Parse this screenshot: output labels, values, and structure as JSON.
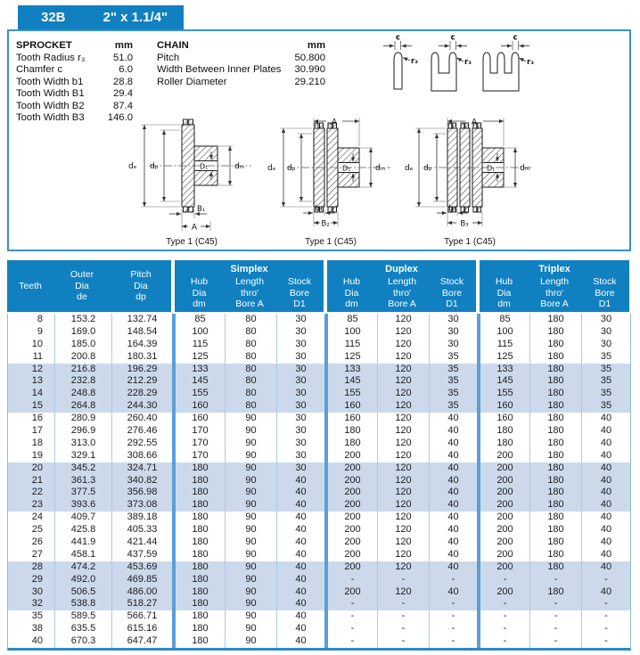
{
  "tab": {
    "model": "32B",
    "size": "2\" x 1.1/4\""
  },
  "sprocket": {
    "title": "SPROCKET",
    "unit": "mm",
    "rows": [
      {
        "label": "Tooth Radius r₃",
        "value": "51.0"
      },
      {
        "label": "Chamfer c",
        "value": "6.0"
      },
      {
        "label": "Tooth Width b1",
        "value": "28.8"
      },
      {
        "label": "Tooth Width B1",
        "value": "29.4"
      },
      {
        "label": "Tooth Width B2",
        "value": "87.4"
      },
      {
        "label": "Tooth Width B3",
        "value": "146.0"
      }
    ]
  },
  "chain": {
    "title": "CHAIN",
    "unit": "mm",
    "rows": [
      {
        "label": "Pitch",
        "value": "50.800"
      },
      {
        "label": "Width Between Inner Plates",
        "value": "30.990"
      },
      {
        "label": "Roller Diameter",
        "value": "29.210"
      }
    ]
  },
  "diagrams": {
    "profiles": [
      {
        "c": "c",
        "r3": "r₃"
      },
      {
        "c": "c",
        "r3": "r₃"
      },
      {
        "c": "c",
        "r3": "r₃"
      }
    ],
    "sections": [
      {
        "caption": "Type 1 (C45)",
        "de": "dₑ",
        "dp": "dₚ",
        "d1": "D₁",
        "dm": "dₘ",
        "bottom1": "B₁",
        "bottom2": "A"
      },
      {
        "caption": "Type 1 (C45)",
        "top": "A",
        "de": "dₑ",
        "dp": "dₚ",
        "d1": "D₁",
        "dm": "dₘ",
        "bottom1": "b₁",
        "bottom2": "B₂"
      },
      {
        "caption": "Type 1 (C45)",
        "top": "A",
        "de": "dₑ",
        "dp": "dₚ",
        "d1": "D₁",
        "dm": "dₘ",
        "bottom1": "b₁",
        "bottom2": "B₃"
      }
    ]
  },
  "table": {
    "header": {
      "teeth": "Teeth",
      "outer": [
        "Outer",
        "Dia",
        "de"
      ],
      "pitch": [
        "Pitch",
        "Dia",
        "dp"
      ],
      "groups": [
        {
          "title": "Simplex",
          "hub": [
            "Hub",
            "Dia",
            "dm"
          ],
          "length": [
            "Length",
            "thro'",
            "Bore A"
          ],
          "stock": [
            "Stock",
            "Bore",
            "D1"
          ]
        },
        {
          "title": "Duplex",
          "hub": [
            "Hub",
            "Dia",
            "dm"
          ],
          "length": [
            "Length",
            "thro'",
            "Bore A"
          ],
          "stock": [
            "Stock",
            "Bore",
            "D1"
          ]
        },
        {
          "title": "Triplex",
          "hub": [
            "Hub",
            "Dia",
            "dm"
          ],
          "length": [
            "Length",
            "thro'",
            "Bore A"
          ],
          "stock": [
            "Stock",
            "Bore",
            "D1"
          ]
        }
      ]
    },
    "rows": [
      [
        "8",
        "153.2",
        "132.74",
        "85",
        "80",
        "30",
        "85",
        "120",
        "30",
        "85",
        "180",
        "30"
      ],
      [
        "9",
        "169.0",
        "148.54",
        "100",
        "80",
        "30",
        "100",
        "120",
        "30",
        "100",
        "180",
        "30"
      ],
      [
        "10",
        "185.0",
        "164.39",
        "115",
        "80",
        "30",
        "115",
        "120",
        "30",
        "115",
        "180",
        "30"
      ],
      [
        "11",
        "200.8",
        "180.31",
        "125",
        "80",
        "30",
        "125",
        "120",
        "35",
        "125",
        "180",
        "35"
      ],
      [
        "12",
        "216.8",
        "196.29",
        "133",
        "80",
        "30",
        "133",
        "120",
        "35",
        "133",
        "180",
        "35"
      ],
      [
        "13",
        "232.8",
        "212.29",
        "145",
        "80",
        "30",
        "145",
        "120",
        "35",
        "145",
        "180",
        "35"
      ],
      [
        "14",
        "248.8",
        "228.29",
        "155",
        "80",
        "30",
        "155",
        "120",
        "35",
        "155",
        "180",
        "35"
      ],
      [
        "15",
        "264.8",
        "244.30",
        "160",
        "80",
        "30",
        "160",
        "120",
        "35",
        "160",
        "180",
        "35"
      ],
      [
        "16",
        "280.9",
        "260.40",
        "160",
        "90",
        "30",
        "160",
        "120",
        "40",
        "160",
        "180",
        "40"
      ],
      [
        "17",
        "296.9",
        "276.46",
        "170",
        "90",
        "30",
        "180",
        "120",
        "40",
        "180",
        "180",
        "40"
      ],
      [
        "18",
        "313.0",
        "292.55",
        "170",
        "90",
        "30",
        "180",
        "120",
        "40",
        "180",
        "180",
        "40"
      ],
      [
        "19",
        "329.1",
        "308.66",
        "170",
        "90",
        "30",
        "200",
        "120",
        "40",
        "200",
        "180",
        "40"
      ],
      [
        "20",
        "345.2",
        "324.71",
        "180",
        "90",
        "30",
        "200",
        "120",
        "40",
        "200",
        "180",
        "40"
      ],
      [
        "21",
        "361.3",
        "340.82",
        "180",
        "90",
        "40",
        "200",
        "120",
        "40",
        "200",
        "180",
        "40"
      ],
      [
        "22",
        "377.5",
        "356.98",
        "180",
        "90",
        "40",
        "200",
        "120",
        "40",
        "200",
        "180",
        "40"
      ],
      [
        "23",
        "393.6",
        "373.08",
        "180",
        "90",
        "40",
        "200",
        "120",
        "40",
        "200",
        "180",
        "40"
      ],
      [
        "24",
        "409.7",
        "389.18",
        "180",
        "90",
        "40",
        "200",
        "120",
        "40",
        "200",
        "180",
        "40"
      ],
      [
        "25",
        "425.8",
        "405.33",
        "180",
        "90",
        "40",
        "200",
        "120",
        "40",
        "200",
        "180",
        "40"
      ],
      [
        "26",
        "441.9",
        "421.44",
        "180",
        "90",
        "40",
        "200",
        "120",
        "40",
        "200",
        "180",
        "40"
      ],
      [
        "27",
        "458.1",
        "437.59",
        "180",
        "90",
        "40",
        "200",
        "120",
        "40",
        "200",
        "180",
        "40"
      ],
      [
        "28",
        "474.2",
        "453.69",
        "180",
        "90",
        "40",
        "200",
        "120",
        "40",
        "200",
        "180",
        "40"
      ],
      [
        "29",
        "492.0",
        "469.85",
        "180",
        "90",
        "40",
        "-",
        "-",
        "-",
        "-",
        "-",
        "-"
      ],
      [
        "30",
        "506.5",
        "486.00",
        "180",
        "90",
        "40",
        "200",
        "120",
        "40",
        "200",
        "180",
        "40"
      ],
      [
        "32",
        "538.8",
        "518.27",
        "180",
        "90",
        "40",
        "-",
        "-",
        "-",
        "-",
        "-",
        "-"
      ],
      [
        "35",
        "589.5",
        "566.71",
        "180",
        "90",
        "40",
        "-",
        "-",
        "-",
        "-",
        "-",
        "-"
      ],
      [
        "38",
        "635.5",
        "615.16",
        "180",
        "90",
        "40",
        "-",
        "-",
        "-",
        "-",
        "-",
        "-"
      ],
      [
        "40",
        "670.3",
        "647.47",
        "180",
        "90",
        "40",
        "-",
        "-",
        "-",
        "-",
        "-",
        "-"
      ]
    ]
  }
}
